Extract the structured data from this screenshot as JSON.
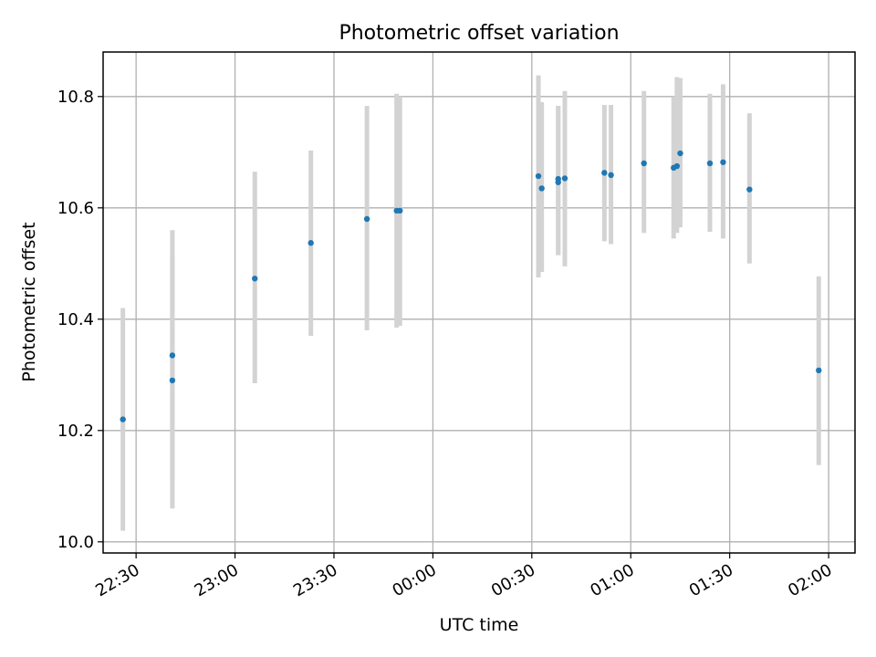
{
  "chart_data": {
    "type": "scatter",
    "title": "Photometric offset variation",
    "xlabel": "UTC time",
    "ylabel": "Photometric offset",
    "x_axis": {
      "kind": "time",
      "unit": "UTC",
      "xlim": [
        "22:20",
        "02:08"
      ],
      "tick_values": [
        "22:30",
        "23:00",
        "23:30",
        "00:00",
        "00:30",
        "01:00",
        "01:30",
        "02:00"
      ],
      "tick_labels": [
        "22:30",
        "23:00",
        "23:30",
        "00:00",
        "00:30",
        "01:00",
        "01:30",
        "02:00"
      ],
      "tick_rotation_deg": 30
    },
    "y_axis": {
      "ylim": [
        9.98,
        10.88
      ],
      "tick_values": [
        10.0,
        10.2,
        10.4,
        10.6,
        10.8
      ],
      "tick_labels": [
        "10.0",
        "10.2",
        "10.4",
        "10.6",
        "10.8"
      ]
    },
    "grid": true,
    "colors": {
      "point": "#1f77b4",
      "error_bar": "#d3d3d3",
      "grid": "#b0b0b0"
    },
    "series": [
      {
        "x": [
          "22:26",
          "22:41",
          "22:41",
          "23:06",
          "23:23",
          "23:40",
          "23:49",
          "23:50",
          "00:32",
          "00:33",
          "00:38",
          "00:38",
          "00:40",
          "00:52",
          "00:54",
          "01:04",
          "01:13",
          "01:14",
          "01:15",
          "01:24",
          "01:28",
          "01:36",
          "01:57"
        ],
        "y": [
          10.22,
          10.335,
          10.29,
          10.473,
          10.537,
          10.58,
          10.595,
          10.595,
          10.657,
          10.635,
          10.652,
          10.646,
          10.653,
          10.663,
          10.659,
          10.68,
          10.672,
          10.675,
          10.698,
          10.68,
          10.682,
          10.633,
          10.308
        ],
        "yerr_low": [
          10.02,
          10.11,
          10.06,
          10.285,
          10.37,
          10.38,
          10.385,
          10.388,
          10.475,
          10.485,
          10.515,
          10.515,
          10.495,
          10.54,
          10.535,
          10.555,
          10.545,
          10.555,
          10.565,
          10.557,
          10.545,
          10.5,
          10.138
        ],
        "yerr_high": [
          10.42,
          10.56,
          10.515,
          10.665,
          10.703,
          10.783,
          10.805,
          10.8,
          10.838,
          10.79,
          10.783,
          10.783,
          10.81,
          10.785,
          10.785,
          10.81,
          10.8,
          10.835,
          10.833,
          10.805,
          10.822,
          10.77,
          10.477
        ]
      }
    ]
  }
}
